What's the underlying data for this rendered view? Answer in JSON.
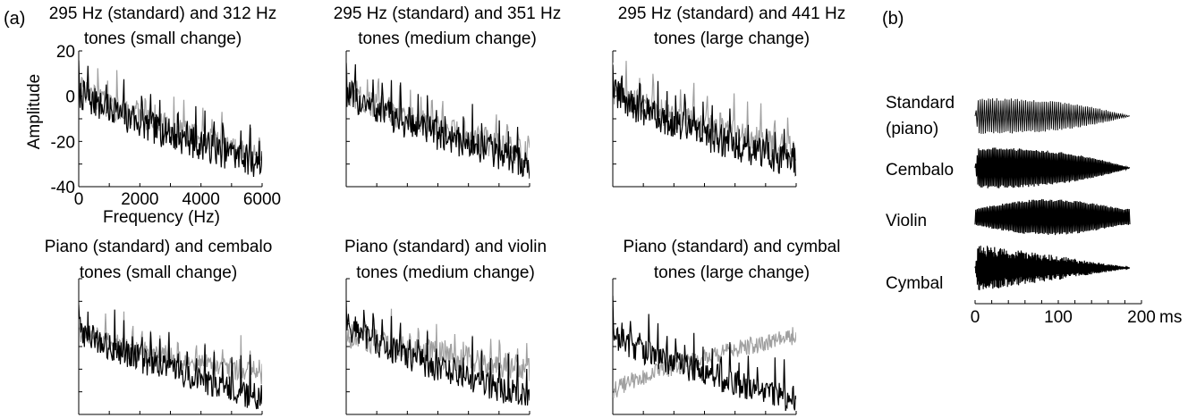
{
  "panel_labels": {
    "a": "(a)",
    "b": "(b)"
  },
  "chart_data": [
    {
      "type": "line",
      "panel": "a",
      "title": [
        "295 Hz (standard) and 312 Hz",
        "tones (small change)"
      ],
      "xlabel": "Frequency (Hz)",
      "ylabel": "Amplitude",
      "xlim": [
        0,
        6000
      ],
      "ylim": [
        -40,
        20
      ],
      "xticks": [
        0,
        2000,
        4000,
        6000
      ],
      "yticks": [
        -40,
        -20,
        0,
        20
      ],
      "series_colors": [
        "#000000",
        "#a0a0a0"
      ],
      "series": [
        {
          "f0": 295,
          "start": 2,
          "end": -30,
          "noise": 7,
          "peak": 18
        },
        {
          "f0": 312,
          "start": 4,
          "end": -27,
          "noise": 6,
          "peak": 16
        }
      ]
    },
    {
      "type": "line",
      "panel": "a",
      "title": [
        "295 Hz (standard) and 351 Hz",
        "tones (medium change)"
      ],
      "xlim": [
        0,
        6000
      ],
      "ylim": [
        -40,
        20
      ],
      "series_colors": [
        "#000000",
        "#a0a0a0"
      ],
      "series": [
        {
          "f0": 295,
          "start": 2,
          "end": -30,
          "noise": 7,
          "peak": 18
        },
        {
          "f0": 351,
          "start": 3,
          "end": -26,
          "noise": 6,
          "peak": 15
        }
      ]
    },
    {
      "type": "line",
      "panel": "a",
      "title": [
        "295 Hz (standard) and 441 Hz",
        "tones (large change)"
      ],
      "xlim": [
        0,
        6000
      ],
      "ylim": [
        -40,
        20
      ],
      "series_colors": [
        "#000000",
        "#a0a0a0"
      ],
      "series": [
        {
          "f0": 295,
          "start": 2,
          "end": -30,
          "noise": 7,
          "peak": 18
        },
        {
          "f0": 441,
          "start": 3,
          "end": -24,
          "noise": 6,
          "peak": 16
        }
      ]
    },
    {
      "type": "line",
      "panel": "a",
      "title": [
        "Piano (standard) and cembalo",
        "tones (small change)"
      ],
      "xlim": [
        0,
        6000
      ],
      "ylim": [
        -40,
        20
      ],
      "series_colors": [
        "#000000",
        "#a0a0a0"
      ],
      "series": [
        {
          "f0": 295,
          "start": -2,
          "end": -33,
          "noise": 6,
          "peak": 17
        },
        {
          "f0": 295,
          "start": -4,
          "end": -22,
          "noise": 5,
          "peak": 14
        }
      ]
    },
    {
      "type": "line",
      "panel": "a",
      "title": [
        "Piano (standard) and violin",
        "tones (medium change)"
      ],
      "xlim": [
        0,
        6000
      ],
      "ylim": [
        -40,
        20
      ],
      "series_colors": [
        "#000000",
        "#a0a0a0"
      ],
      "series": [
        {
          "f0": 295,
          "start": 0,
          "end": -33,
          "noise": 6,
          "peak": 18
        },
        {
          "f0": 295,
          "start": -4,
          "end": -20,
          "noise": 6,
          "peak": 14
        }
      ]
    },
    {
      "type": "line",
      "panel": "a",
      "title": [
        "Piano (standard) and cymbal",
        "tones (large change)"
      ],
      "xlim": [
        0,
        6000
      ],
      "ylim": [
        -40,
        20
      ],
      "series_colors": [
        "#000000",
        "#a0a0a0"
      ],
      "series": [
        {
          "f0": 295,
          "start": -4,
          "end": -34,
          "noise": 6,
          "peak": 18
        },
        {
          "f0": 0,
          "start": -30,
          "end": -5,
          "noise": 4,
          "peak": 0
        }
      ]
    },
    {
      "type": "waveform",
      "panel": "b",
      "xlim": [
        0,
        200
      ],
      "xticks": [
        0,
        100,
        200
      ],
      "xunit": "ms",
      "waveforms": [
        {
          "label": [
            "Standard",
            "(piano)"
          ],
          "envelope": "decay-slow",
          "amplitude": 0.75,
          "density": "sparse"
        },
        {
          "label": [
            "Cembalo"
          ],
          "envelope": "decay-slow",
          "amplitude": 0.85,
          "density": "dense"
        },
        {
          "label": [
            "Violin"
          ],
          "envelope": "swell",
          "amplitude": 0.75,
          "density": "dense"
        },
        {
          "label": [
            "Cymbal"
          ],
          "envelope": "decay-fast",
          "amplitude": 1.0,
          "density": "noise"
        }
      ]
    }
  ]
}
